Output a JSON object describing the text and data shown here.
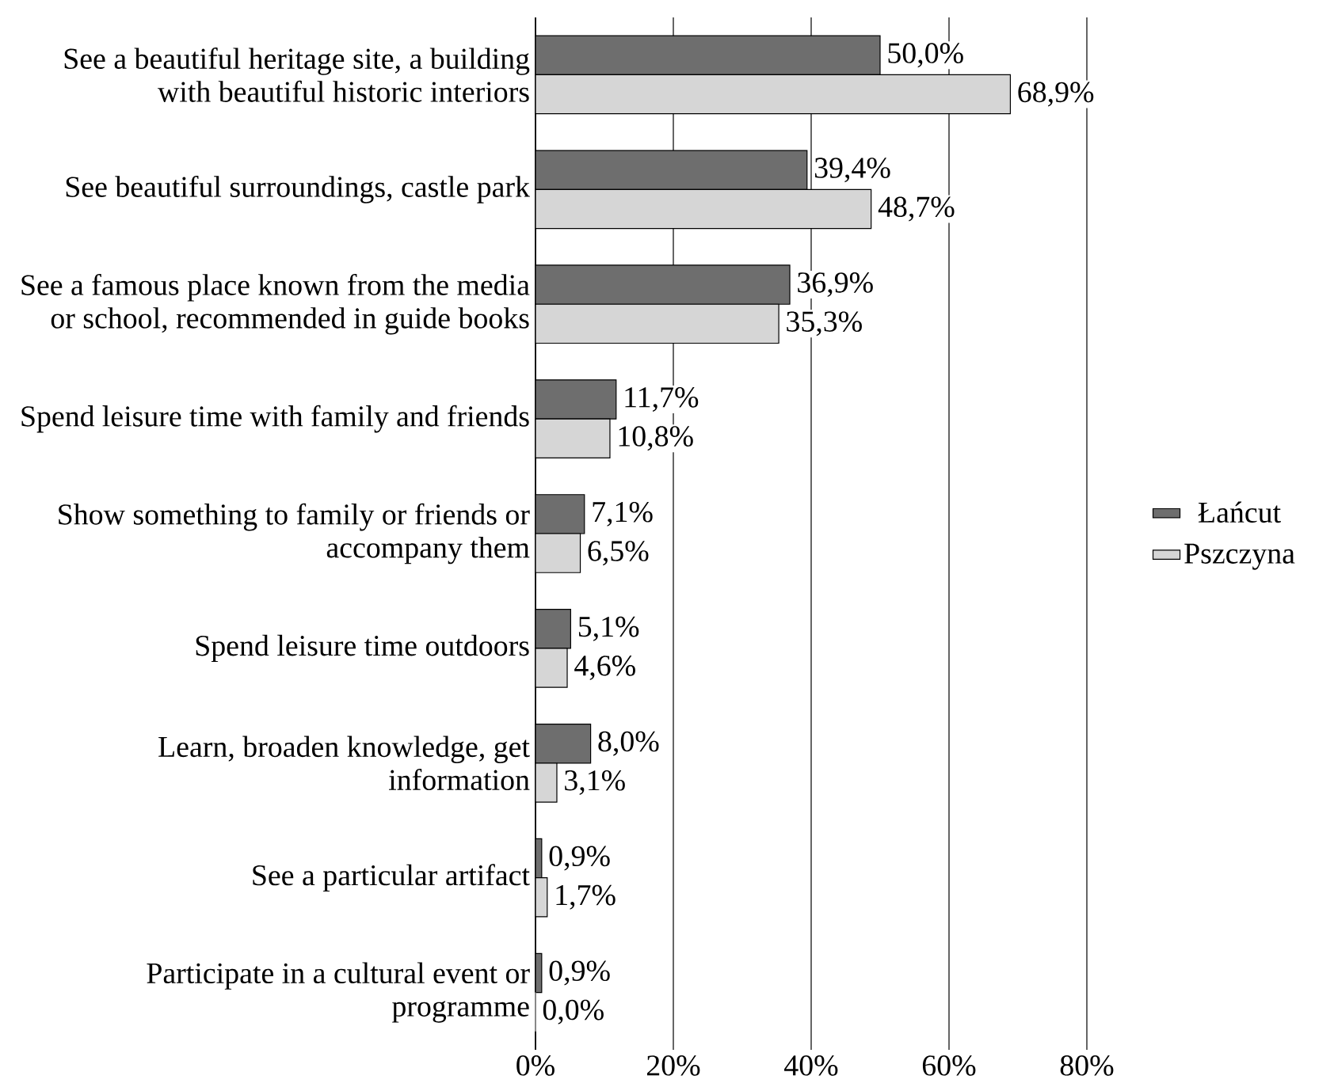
{
  "chart_data": {
    "type": "bar",
    "orientation": "horizontal",
    "categories": [
      "See a beautiful heritage site, a building with beautiful historic interiors",
      "See beautiful surroundings, castle park",
      "See a famous place known from the media or school, recommended in guide books",
      "Spend leisure time with family and friends",
      "Show something to family or friends or accompany them",
      "Spend leisure time outdoors",
      "Learn, broaden knowledge, get information",
      "See a particular artifact",
      "Participate in a cultural event or programme"
    ],
    "series": [
      {
        "name": "Łańcut",
        "color": "#6e6e6e",
        "values": [
          50.0,
          39.4,
          36.9,
          11.7,
          7.1,
          5.1,
          8.0,
          0.9,
          0.9
        ],
        "value_labels": [
          "50,0%",
          "39,4%",
          "36,9%",
          "11,7%",
          "7,1%",
          "5,1%",
          "8,0%",
          "0,9%",
          "0,9%"
        ]
      },
      {
        "name": "Pszczyna",
        "color": "#d6d6d6",
        "values": [
          68.9,
          48.7,
          35.3,
          10.8,
          6.5,
          4.6,
          3.1,
          1.7,
          0.0
        ],
        "value_labels": [
          "68,9%",
          "48,7%",
          "35,3%",
          "10,8%",
          "6,5%",
          "4,6%",
          "3,1%",
          "1,7%",
          "0,0%"
        ]
      }
    ],
    "xlim": [
      0,
      80
    ],
    "xticks": [
      {
        "value": 0,
        "label": "0%"
      },
      {
        "value": 20,
        "label": "20%"
      },
      {
        "value": 40,
        "label": "40%"
      },
      {
        "value": 60,
        "label": "60%"
      },
      {
        "value": 80,
        "label": "80%"
      }
    ],
    "grid": "x",
    "legend": "right"
  }
}
